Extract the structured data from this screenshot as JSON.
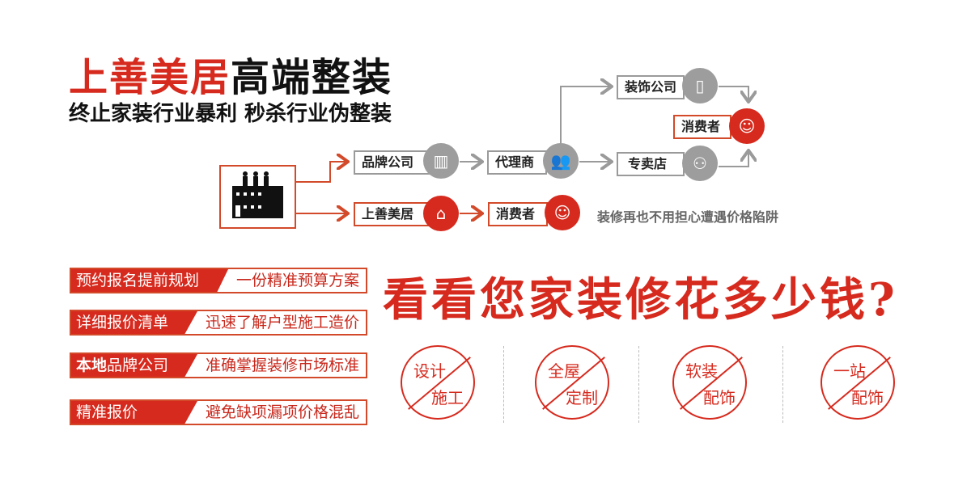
{
  "header": {
    "brand": "上善美居",
    "tagline": "高端整装",
    "subtitle": "终止家装行业暴利  秒杀行业伪整装"
  },
  "flow": {
    "brand_company": "品牌公司",
    "agent": "代理商",
    "decoration_company": "装饰公司",
    "consumer_top": "消费者",
    "store": "专卖店",
    "shanshan": "上善美居",
    "consumer_bottom": "消费者",
    "note": "装修再也不用担心遭遇价格陷阱",
    "colors": {
      "gray": "#9a9a9a",
      "red": "#d62a1e",
      "orange_line": "#d24a2a"
    }
  },
  "features": [
    {
      "left": "预约报名提前规划",
      "right": "一份精准预算方案"
    },
    {
      "left": "详细报价清单",
      "right": "迅速了解户型施工造价"
    },
    {
      "left_bold": "本地",
      "left": "品牌公司",
      "right": "准确掌握装修市场标准"
    },
    {
      "left": "精准报价",
      "right": "避免缺项漏项价格混乱"
    }
  ],
  "headline": "看看您家装修花多少钱?",
  "badges": [
    {
      "top": "设计",
      "bottom": "施工"
    },
    {
      "top": "全屋",
      "bottom": "定制"
    },
    {
      "top": "软装",
      "bottom": "配饰"
    },
    {
      "top": "一站",
      "bottom": "配饰"
    }
  ]
}
